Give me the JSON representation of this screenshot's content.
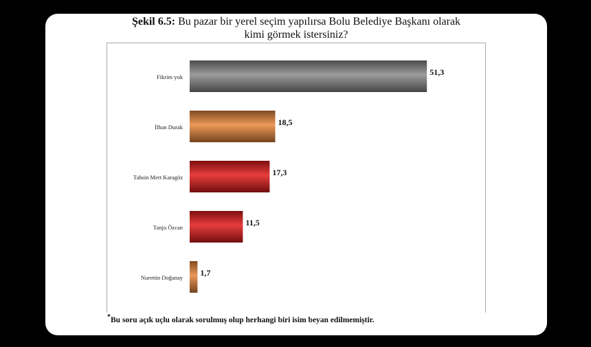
{
  "figure": {
    "label": "Şekil 6.5:",
    "title_line1": "Bu pazar bir yerel seçim yapılırsa Bolu Belediye Başkanı olarak",
    "title_line2": "kimi görmek istersiniz?"
  },
  "footnote": {
    "marker": "*",
    "text": "Bu soru açık uçlu olarak sorulmuş olup herhangi biri isim beyan edilmemiştir."
  },
  "chart_data": {
    "type": "bar",
    "orientation": "horizontal",
    "categories": [
      "Fikrim yok",
      "İlhan Durak",
      "Tahsin Mert Karagöz",
      "Tanju Özcan",
      "Nurettin Doğanay"
    ],
    "values": [
      51.3,
      18.5,
      17.3,
      11.5,
      1.7
    ],
    "value_labels": [
      "51,3",
      "18,5",
      "17,3",
      "11,5",
      "1,7"
    ],
    "bar_colors": [
      "#8a8a8a",
      "#e8873c",
      "#e31b1b",
      "#e31b1b",
      "#e8873c"
    ],
    "xlim": [
      0,
      60
    ],
    "grid": false,
    "legend": "none"
  }
}
